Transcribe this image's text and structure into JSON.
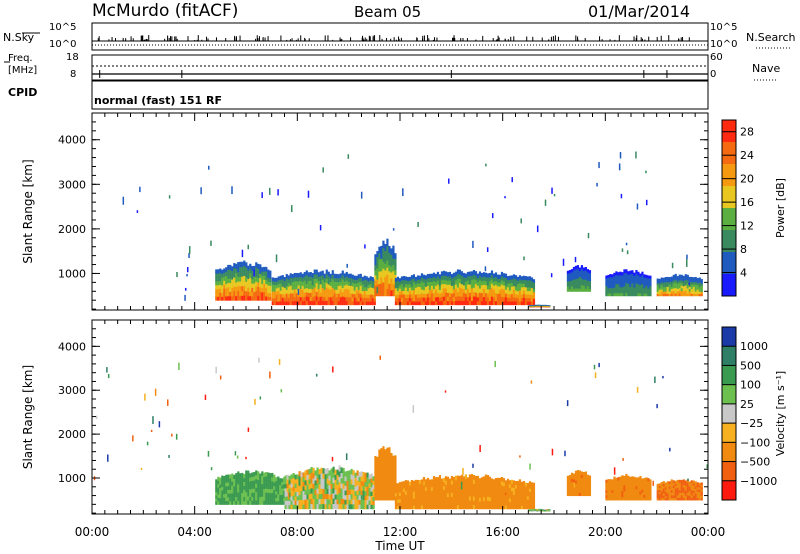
{
  "header": {
    "station": "McMurdo (fitACF)",
    "beam": "Beam 05",
    "date": "01/Mar/2014",
    "mode": "normal (fast) 151 RF"
  },
  "mini_panels": {
    "nsky": {
      "label": "N.Sky",
      "ticks_left": [
        "10^5",
        "10^0"
      ],
      "ticks_right": [
        "10^5",
        "10^0"
      ],
      "right_label": "N.Search"
    },
    "freq": {
      "label_top": "Freq.",
      "label_unit": "[MHz]",
      "ticks_left": [
        "18",
        "8"
      ],
      "ticks_right": [
        "60",
        "0"
      ],
      "right_label": "Nave"
    },
    "cpid": {
      "label": "CPID"
    }
  },
  "colors": {
    "power": [
      "#1a1aff",
      "#1f5abf",
      "#3a8a60",
      "#5aaf40",
      "#e8c820",
      "#f59a10",
      "#f56a10",
      "#ff2a10"
    ],
    "velocity": [
      "#1a3aa8",
      "#2e7f65",
      "#3a9a50",
      "#6cc050",
      "#c8c8c8",
      "#f7b020",
      "#f08a10",
      "#f06010",
      "#ff1a10"
    ]
  },
  "chart_data": [
    {
      "type": "heatmap",
      "panel": "power",
      "ylabel": "Slant Range [km]",
      "y_ticks": [
        "1000",
        "2000",
        "3000",
        "4000"
      ],
      "ylim": [
        180,
        4600
      ],
      "colorbar": {
        "label": "Power [dB]",
        "ticks": [
          "4",
          "8",
          "12",
          "16",
          "20",
          "24",
          "28"
        ],
        "range": [
          0,
          30
        ]
      },
      "x_ticks": [
        "00:00",
        "04:00",
        "08:00",
        "12:00",
        "16:00",
        "20:00",
        "00:00"
      ],
      "xlim": [
        "00:00",
        "24:00"
      ],
      "echo_regions_hours_km": [
        {
          "t_start": 4.8,
          "t_end": 7.0,
          "r_low": 400,
          "r_high": 1300,
          "peak_db": 28
        },
        {
          "t_start": 7.0,
          "t_end": 11.0,
          "r_low": 300,
          "r_high": 1100,
          "peak_db": 30
        },
        {
          "t_start": 11.0,
          "t_end": 11.8,
          "r_low": 500,
          "r_high": 1800,
          "peak_db": 26
        },
        {
          "t_start": 11.8,
          "t_end": 17.2,
          "r_low": 300,
          "r_high": 1100,
          "peak_db": 30
        },
        {
          "t_start": 17.0,
          "t_end": 17.8,
          "r_low": 250,
          "r_high": 300,
          "peak_db": 30
        },
        {
          "t_start": 18.5,
          "t_end": 19.4,
          "r_low": 600,
          "r_high": 1200,
          "peak_db": 12
        },
        {
          "t_start": 20.0,
          "t_end": 21.8,
          "r_low": 500,
          "r_high": 1100,
          "peak_db": 10
        },
        {
          "t_start": 22.0,
          "t_end": 23.8,
          "r_low": 500,
          "r_high": 1000,
          "peak_db": 22
        }
      ]
    },
    {
      "type": "heatmap",
      "panel": "velocity",
      "ylabel": "Slant Range [km]",
      "y_ticks": [
        "1000",
        "2000",
        "3000",
        "4000"
      ],
      "ylim": [
        180,
        4600
      ],
      "colorbar": {
        "label": "Velocity [m s⁻¹]",
        "ticks": [
          "1000",
          "500",
          "100",
          "25",
          "−25",
          "−100",
          "−500",
          "−1000"
        ],
        "range": [
          -1000,
          1000
        ]
      },
      "x_ticks": [
        "00:00",
        "04:00",
        "08:00",
        "12:00",
        "16:00",
        "20:00",
        "00:00"
      ],
      "xlim": [
        "00:00",
        "24:00"
      ],
      "xlabel": "Time UT",
      "echo_regions_hours_km": [
        {
          "t_start": 4.8,
          "t_end": 7.5,
          "r_low": 400,
          "r_high": 1200,
          "velocity": 150
        },
        {
          "t_start": 7.5,
          "t_end": 11.0,
          "r_low": 300,
          "r_high": 1300,
          "velocity": 0
        },
        {
          "t_start": 11.0,
          "t_end": 11.8,
          "r_low": 500,
          "r_high": 1800,
          "velocity": -300
        },
        {
          "t_start": 11.8,
          "t_end": 17.2,
          "r_low": 300,
          "r_high": 1100,
          "velocity": -200
        },
        {
          "t_start": 17.0,
          "t_end": 17.8,
          "r_low": 250,
          "r_high": 300,
          "velocity": 80
        },
        {
          "t_start": 18.5,
          "t_end": 19.4,
          "r_low": 600,
          "r_high": 1200,
          "velocity": -400
        },
        {
          "t_start": 20.0,
          "t_end": 21.8,
          "r_low": 500,
          "r_high": 1100,
          "velocity": -400
        },
        {
          "t_start": 22.0,
          "t_end": 23.8,
          "r_low": 500,
          "r_high": 1000,
          "velocity": -500
        }
      ]
    }
  ]
}
